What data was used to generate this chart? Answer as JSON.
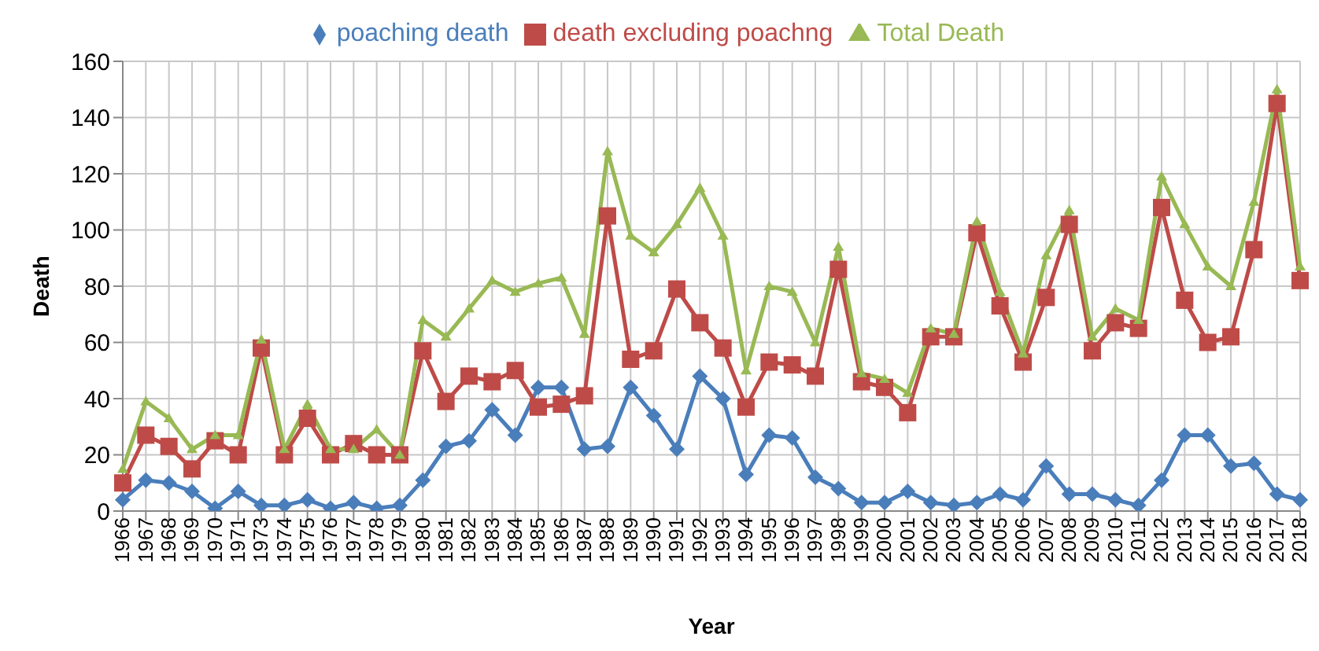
{
  "chart_data": {
    "type": "line",
    "xlabel": "Year",
    "ylabel": "Death",
    "categories": [
      "1966",
      "1967",
      "1968",
      "1969",
      "1970",
      "1971",
      "1973",
      "1974",
      "1975",
      "1976",
      "1977",
      "1978",
      "1979",
      "1980",
      "1981",
      "1982",
      "1983",
      "1984",
      "1985",
      "1986",
      "1987",
      "1988",
      "1989",
      "1990",
      "1991",
      "1992",
      "1993",
      "1994",
      "1995",
      "1996",
      "1997",
      "1998",
      "1999",
      "2000",
      "2001",
      "2002",
      "2003",
      "2004",
      "2005",
      "2006",
      "2007",
      "2008",
      "2009",
      "2010",
      "2011",
      "2012",
      "2013",
      "2014",
      "2015",
      "2016",
      "2017",
      "2018"
    ],
    "series": [
      {
        "name": "poaching death",
        "color": "#4a7ebb",
        "marker": "diamond",
        "values": [
          4,
          11,
          10,
          7,
          1,
          7,
          2,
          2,
          4,
          1,
          3,
          1,
          2,
          11,
          23,
          25,
          36,
          27,
          44,
          44,
          22,
          23,
          44,
          34,
          22,
          48,
          40,
          13,
          27,
          26,
          12,
          8,
          3,
          3,
          7,
          3,
          2,
          3,
          6,
          4,
          16,
          6,
          6,
          4,
          2,
          11,
          27,
          27,
          16,
          17,
          6,
          4
        ]
      },
      {
        "name": "death excluding poachng",
        "color": "#be4b48",
        "marker": "square",
        "values": [
          10,
          27,
          23,
          15,
          25,
          20,
          58,
          20,
          33,
          20,
          24,
          20,
          20,
          57,
          39,
          48,
          46,
          50,
          37,
          38,
          41,
          105,
          54,
          57,
          79,
          67,
          58,
          37,
          53,
          52,
          48,
          86,
          46,
          44,
          35,
          62,
          62,
          99,
          73,
          53,
          76,
          102,
          57,
          67,
          65,
          108,
          75,
          60,
          62,
          93,
          145,
          82
        ]
      },
      {
        "name": "Total Death",
        "color": "#98b954",
        "marker": "triangle",
        "values": [
          15,
          39,
          33,
          22,
          27,
          27,
          61,
          22,
          38,
          22,
          22,
          29,
          20,
          68,
          62,
          72,
          82,
          78,
          81,
          83,
          63,
          128,
          98,
          92,
          102,
          115,
          98,
          50,
          80,
          78,
          60,
          94,
          49,
          47,
          42,
          65,
          63,
          103,
          78,
          56,
          91,
          107,
          62,
          72,
          68,
          119,
          102,
          87,
          80,
          110,
          150,
          87
        ]
      }
    ],
    "ylim": [
      0,
      160
    ],
    "yticks": [
      0,
      20,
      40,
      60,
      80,
      100,
      120,
      140,
      160
    ],
    "grid": true,
    "legend": "top",
    "line_style": "solid"
  }
}
